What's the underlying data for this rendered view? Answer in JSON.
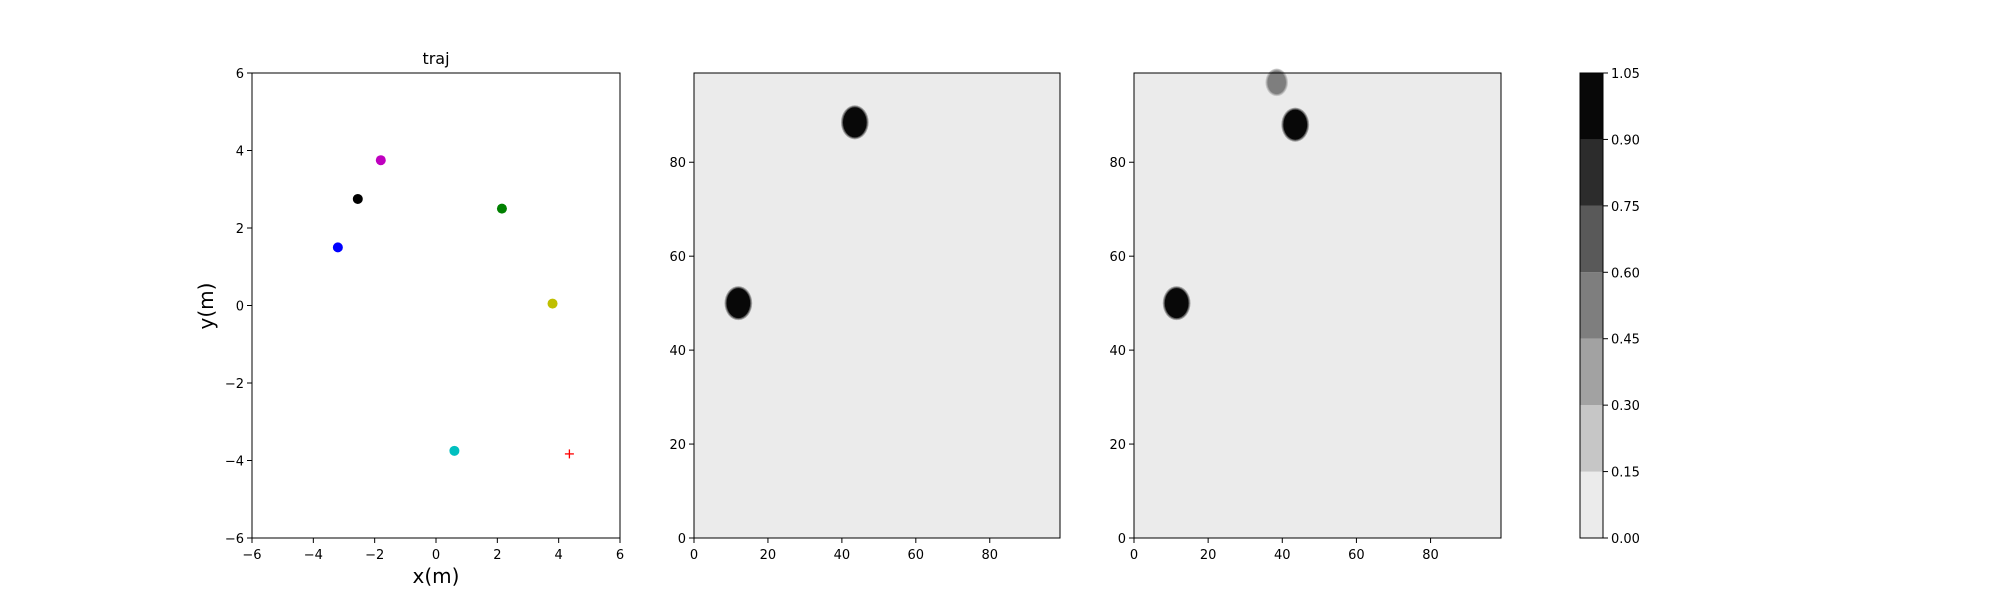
{
  "chart_data": [
    {
      "type": "scatter",
      "title": "traj",
      "xlabel": "x(m)",
      "ylabel": "y(m)",
      "xlim": [
        -6,
        6
      ],
      "ylim": [
        -6,
        6
      ],
      "xticks": [
        "−6",
        "−4",
        "−2",
        "0",
        "2",
        "4",
        "6"
      ],
      "yticks": [
        "−6",
        "−4",
        "−2",
        "0",
        "2",
        "4",
        "6"
      ],
      "points": [
        {
          "x": -3.2,
          "y": 1.5,
          "color": "#0000ff",
          "marker": "circle"
        },
        {
          "x": -2.55,
          "y": 2.75,
          "color": "#000000",
          "marker": "circle"
        },
        {
          "x": -1.8,
          "y": 3.75,
          "color": "#bf00bf",
          "marker": "circle"
        },
        {
          "x": 2.15,
          "y": 2.5,
          "color": "#008000",
          "marker": "circle"
        },
        {
          "x": 3.8,
          "y": 0.05,
          "color": "#bfbf00",
          "marker": "circle"
        },
        {
          "x": 0.6,
          "y": -3.75,
          "color": "#00bfbf",
          "marker": "circle"
        },
        {
          "x": 4.35,
          "y": -3.83,
          "color": "#ff0000",
          "marker": "plus"
        }
      ]
    },
    {
      "type": "heatmap",
      "xlim": [
        0,
        99
      ],
      "ylim": [
        0,
        99
      ],
      "xticks": [
        "0",
        "20",
        "40",
        "60",
        "80"
      ],
      "yticks": [
        "0",
        "20",
        "40",
        "60",
        "80"
      ],
      "background_level": 0.07,
      "blobs": [
        {
          "cx": 12,
          "cy": 50,
          "r": 3.2,
          "level": 1.0
        },
        {
          "cx": 43.5,
          "cy": 88.5,
          "r": 3.2,
          "level": 1.0
        }
      ]
    },
    {
      "type": "heatmap",
      "xlim": [
        0,
        99
      ],
      "ylim": [
        0,
        99
      ],
      "xticks": [
        "0",
        "20",
        "40",
        "60",
        "80"
      ],
      "yticks": [
        "0",
        "20",
        "40",
        "60",
        "80"
      ],
      "background_level": 0.07,
      "blobs": [
        {
          "cx": 11.5,
          "cy": 50,
          "r": 3.2,
          "level": 1.0
        },
        {
          "cx": 43.5,
          "cy": 88,
          "r": 3.2,
          "level": 1.0
        },
        {
          "cx": 38.5,
          "cy": 97,
          "r": 2.5,
          "level": 0.55
        }
      ]
    }
  ],
  "colorbar": {
    "ticks": [
      "0.00",
      "0.15",
      "0.30",
      "0.45",
      "0.60",
      "0.75",
      "0.90",
      "1.05"
    ],
    "levels": [
      0.0,
      0.15,
      0.3,
      0.45,
      0.6,
      0.75,
      0.9,
      1.05
    ],
    "colors": [
      "#ebebeb",
      "#c6c6c6",
      "#a2a2a2",
      "#7e7e7e",
      "#595959",
      "#2c2c2c",
      "#080808"
    ]
  }
}
